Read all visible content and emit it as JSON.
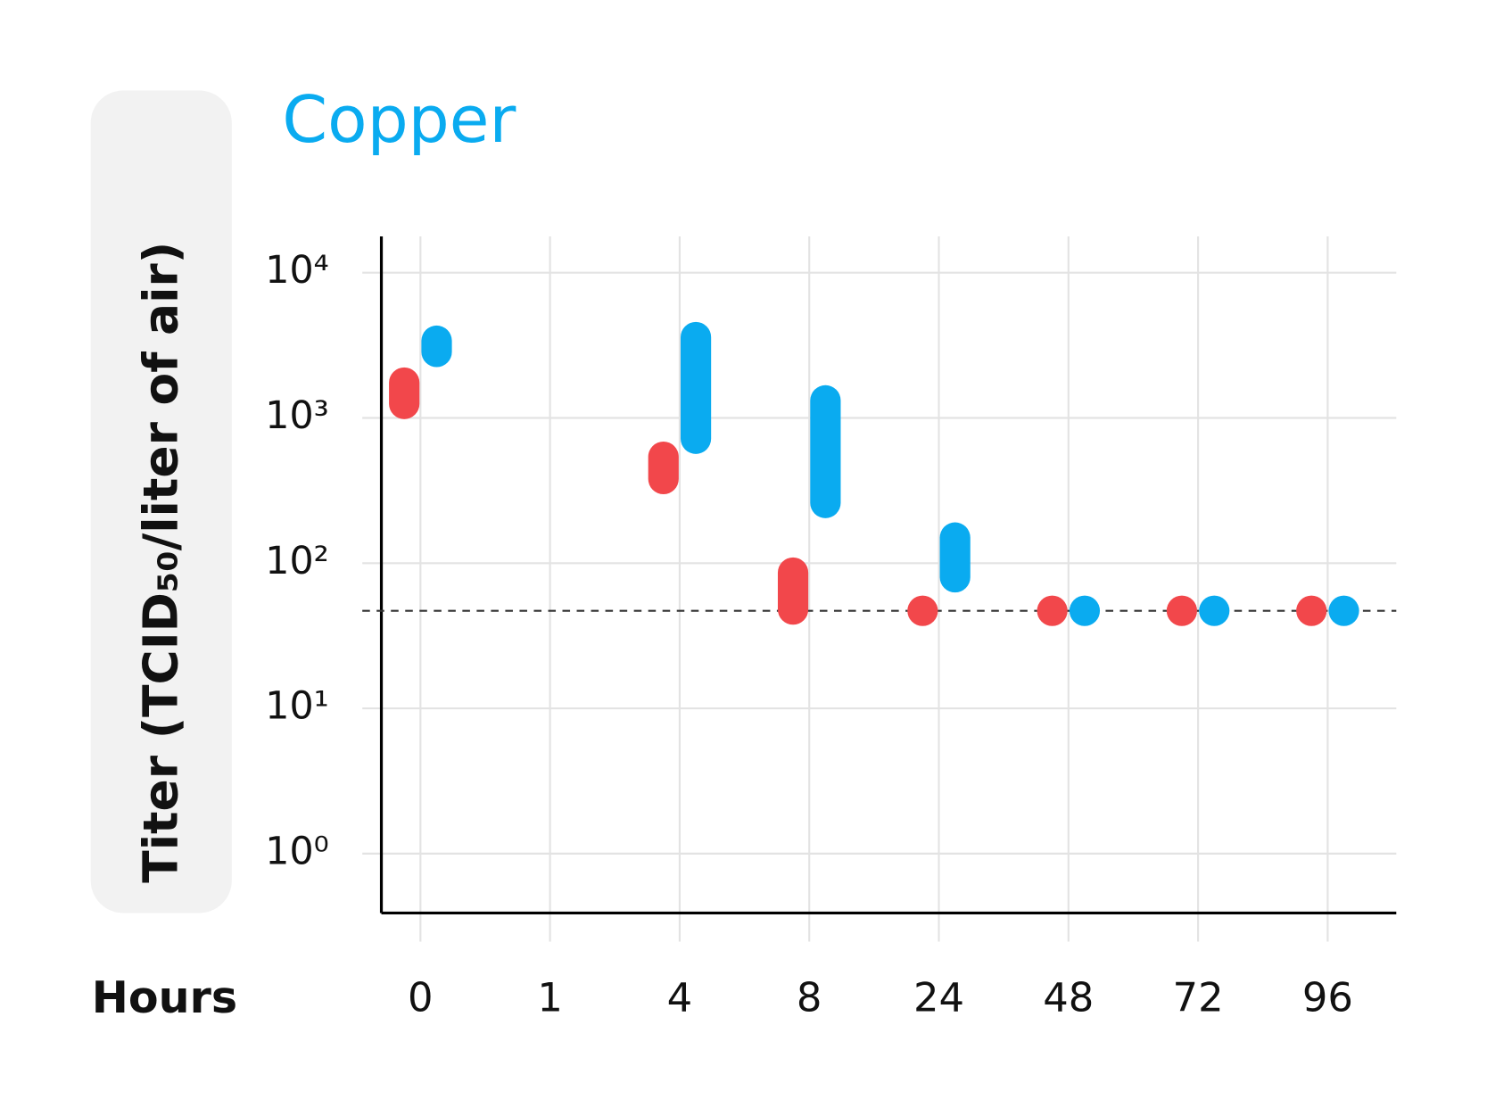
{
  "chart_data": {
    "type": "range",
    "title": "Copper",
    "title_color": "#0aabf0",
    "y_label": "Titer (TCID₅₀/liter of air)",
    "x_label": "Hours",
    "categories": [
      "0",
      "1",
      "4",
      "8",
      "24",
      "48",
      "72",
      "96"
    ],
    "log_scale": true,
    "grid": true,
    "ylim": [
      0.39,
      17800
    ],
    "yticks": [
      {
        "value": 1,
        "label": "10⁰"
      },
      {
        "value": 10,
        "label": "10¹"
      },
      {
        "value": 100,
        "label": "10²"
      },
      {
        "value": 1000,
        "label": "10³"
      },
      {
        "value": 10000,
        "label": "10⁴"
      }
    ],
    "reference_line": 47,
    "series": [
      {
        "color": "#f2474b",
        "low": [
          1250,
          null,
          380,
          48,
          47,
          47,
          47,
          47
        ],
        "high": [
          1750,
          null,
          540,
          86,
          47,
          47,
          47,
          47
        ]
      },
      {
        "color": "#0aabf0",
        "low": [
          2850,
          null,
          720,
          260,
          80,
          47,
          47,
          47
        ],
        "high": [
          3400,
          null,
          3600,
          1320,
          150,
          47,
          47,
          47
        ]
      }
    ]
  }
}
